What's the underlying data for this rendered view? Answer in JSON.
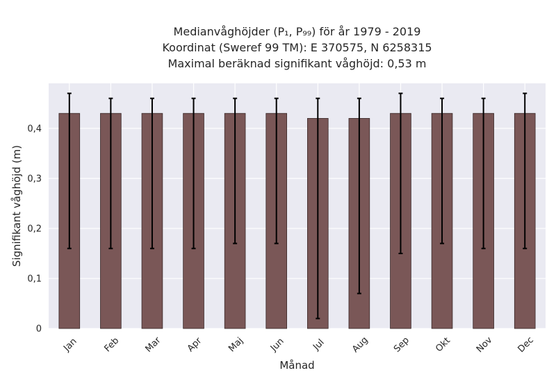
{
  "chart_data": {
    "type": "bar",
    "title_lines": [
      "Medianvåghöjder (P₁, P₉₉) för år 1979 - 2019",
      "Koordinat (Sweref 99 TM): E 370575, N 6258315",
      "Maximal beräknad signifikant våghöjd: 0,53 m"
    ],
    "xlabel": "Månad",
    "ylabel": "Signifikant våghöjd (m)",
    "categories": [
      "Jan",
      "Feb",
      "Mar",
      "Apr",
      "Maj",
      "Jun",
      "Jul",
      "Aug",
      "Sep",
      "Okt",
      "Nov",
      "Dec"
    ],
    "values": [
      0.43,
      0.43,
      0.43,
      0.43,
      0.43,
      0.43,
      0.42,
      0.42,
      0.43,
      0.43,
      0.43,
      0.43
    ],
    "error_low": [
      0.16,
      0.16,
      0.16,
      0.16,
      0.17,
      0.17,
      0.02,
      0.07,
      0.15,
      0.17,
      0.16,
      0.16
    ],
    "error_high": [
      0.47,
      0.46,
      0.46,
      0.46,
      0.46,
      0.46,
      0.46,
      0.46,
      0.47,
      0.46,
      0.46,
      0.47
    ],
    "ylim": [
      0,
      0.49
    ],
    "yticks": [
      0,
      0.1,
      0.2,
      0.3,
      0.4
    ],
    "ytick_labels": [
      "0",
      "0,1",
      "0,2",
      "0,3",
      "0,4"
    ],
    "grid": true,
    "legend": "none",
    "colors": {
      "bar": "#7a5757",
      "bar_edge": "#3a2a2a",
      "error": "#000000",
      "plot_bg": "#eaeaf2",
      "grid": "#ffffff"
    }
  }
}
